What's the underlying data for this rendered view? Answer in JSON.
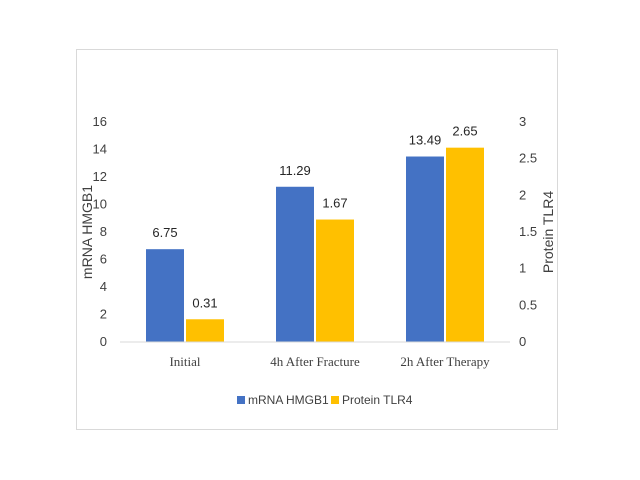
{
  "chart_data": {
    "type": "bar",
    "categories": [
      "Initial",
      "4h After Fracture",
      "2h After Therapy"
    ],
    "series": [
      {
        "name": "mRNA HMGB1",
        "values": [
          6.75,
          11.29,
          13.49
        ],
        "axis": "left",
        "color": "#4472C4",
        "data_labels": [
          "6.75",
          "11.29",
          "13.49"
        ]
      },
      {
        "name": "Protein TLR4",
        "values": [
          0.31,
          1.67,
          2.65
        ],
        "axis": "right",
        "color": "#FFC000",
        "data_labels": [
          "0.31",
          "1.67",
          "2.65"
        ]
      }
    ],
    "ylabel": "mRNA HMGB1",
    "y2label": "Protein TLR4",
    "ylim": [
      0,
      16
    ],
    "y2lim": [
      0,
      3
    ],
    "yticks": [
      "0",
      "2",
      "4",
      "6",
      "8",
      "10",
      "12",
      "14",
      "16"
    ],
    "y2ticks": [
      "0",
      "0.5",
      "1",
      "1.5",
      "2",
      "2.5",
      "3"
    ],
    "grid": false,
    "legend": "bottom"
  }
}
